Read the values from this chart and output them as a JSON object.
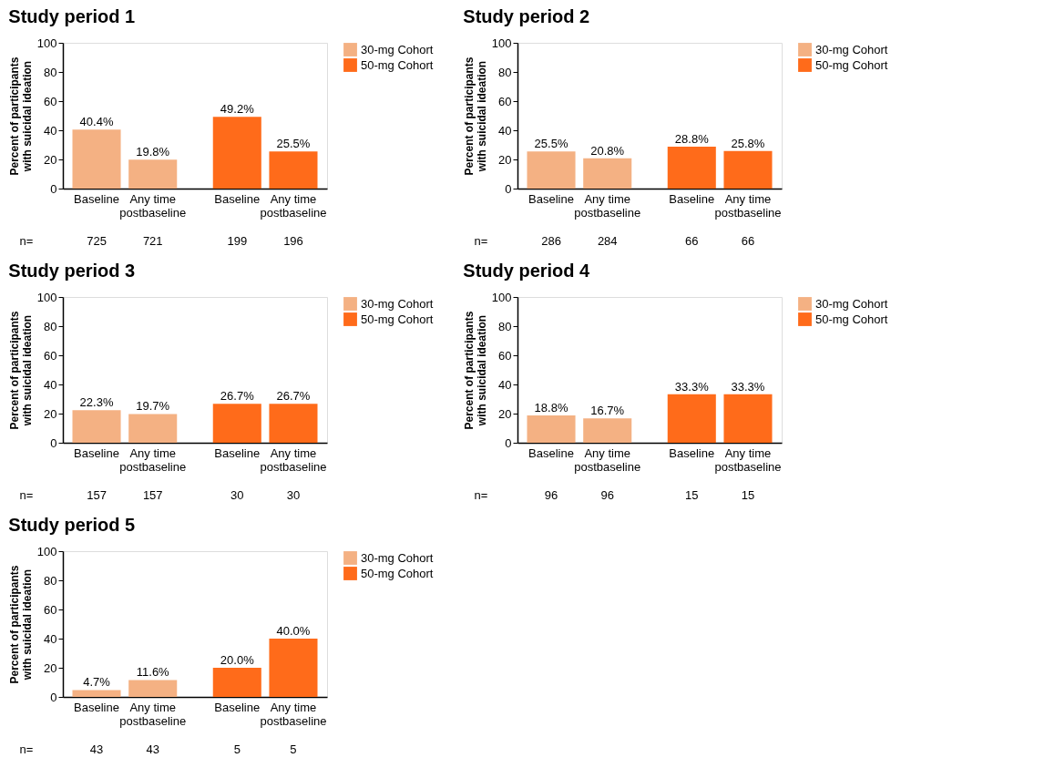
{
  "chart_data": [
    {
      "type": "bar",
      "title": "Study period 1",
      "ylabel": "Percent of participants with suicidal ideation",
      "categories": [
        "Baseline",
        "Any time postbaseline",
        "Baseline",
        "Any time postbaseline"
      ],
      "series": [
        {
          "name": "30-mg Cohort",
          "color": "#f4b183",
          "values": [
            40.4,
            19.8,
            null,
            null
          ],
          "value_labels": [
            "40.4%",
            "19.8%",
            null,
            null
          ]
        },
        {
          "name": "50-mg Cohort",
          "color": "#ff6b1a",
          "values": [
            null,
            null,
            49.2,
            25.5
          ],
          "value_labels": [
            null,
            null,
            "49.2%",
            "25.5%"
          ]
        }
      ],
      "ylim": [
        0,
        100
      ],
      "yticks": [
        0,
        20,
        40,
        60,
        80,
        100
      ],
      "grid": false,
      "legend": "right",
      "annotations": [
        "n=",
        "725",
        "721",
        "199",
        "196"
      ]
    },
    {
      "type": "bar",
      "title": "Study period 2",
      "ylabel": "Percent of participants with suicidal ideation",
      "categories": [
        "Baseline",
        "Any time postbaseline",
        "Baseline",
        "Any time postbaseline"
      ],
      "series": [
        {
          "name": "30-mg Cohort",
          "color": "#f4b183",
          "values": [
            25.5,
            20.8,
            null,
            null
          ],
          "value_labels": [
            "25.5%",
            "20.8%",
            null,
            null
          ]
        },
        {
          "name": "50-mg Cohort",
          "color": "#ff6b1a",
          "values": [
            null,
            null,
            28.8,
            25.8
          ],
          "value_labels": [
            null,
            null,
            "28.8%",
            "25.8%"
          ]
        }
      ],
      "ylim": [
        0,
        100
      ],
      "yticks": [
        0,
        20,
        40,
        60,
        80,
        100
      ],
      "grid": false,
      "legend": "right",
      "annotations": [
        "n=",
        "286",
        "284",
        "66",
        "66"
      ]
    },
    {
      "type": "bar",
      "title": "Study period 3",
      "ylabel": "Percent of participants with suicidal ideation",
      "categories": [
        "Baseline",
        "Any time postbaseline",
        "Baseline",
        "Any time postbaseline"
      ],
      "series": [
        {
          "name": "30-mg Cohort",
          "color": "#f4b183",
          "values": [
            22.3,
            19.7,
            null,
            null
          ],
          "value_labels": [
            "22.3%",
            "19.7%",
            null,
            null
          ]
        },
        {
          "name": "50-mg Cohort",
          "color": "#ff6b1a",
          "values": [
            null,
            null,
            26.7,
            26.7
          ],
          "value_labels": [
            null,
            null,
            "26.7%",
            "26.7%"
          ]
        }
      ],
      "ylim": [
        0,
        100
      ],
      "yticks": [
        0,
        20,
        40,
        60,
        80,
        100
      ],
      "grid": false,
      "legend": "right",
      "annotations": [
        "n=",
        "157",
        "157",
        "30",
        "30"
      ]
    },
    {
      "type": "bar",
      "title": "Study period 4",
      "ylabel": "Percent of participants with suicidal ideation",
      "categories": [
        "Baseline",
        "Any time postbaseline",
        "Baseline",
        "Any time postbaseline"
      ],
      "series": [
        {
          "name": "30-mg Cohort",
          "color": "#f4b183",
          "values": [
            18.8,
            16.7,
            null,
            null
          ],
          "value_labels": [
            "18.8%",
            "16.7%",
            null,
            null
          ]
        },
        {
          "name": "50-mg Cohort",
          "color": "#ff6b1a",
          "values": [
            null,
            null,
            33.3,
            33.3
          ],
          "value_labels": [
            null,
            null,
            "33.3%",
            "33.3%"
          ]
        }
      ],
      "ylim": [
        0,
        100
      ],
      "yticks": [
        0,
        20,
        40,
        60,
        80,
        100
      ],
      "grid": false,
      "legend": "right",
      "annotations": [
        "n=",
        "96",
        "96",
        "15",
        "15"
      ]
    },
    {
      "type": "bar",
      "title": "Study period 5",
      "ylabel": "Percent of participants with suicidal ideation",
      "categories": [
        "Baseline",
        "Any time postbaseline",
        "Baseline",
        "Any time postbaseline"
      ],
      "series": [
        {
          "name": "30-mg Cohort",
          "color": "#f4b183",
          "values": [
            4.7,
            11.6,
            null,
            null
          ],
          "value_labels": [
            "4.7%",
            "11.6%",
            null,
            null
          ]
        },
        {
          "name": "50-mg Cohort",
          "color": "#ff6b1a",
          "values": [
            null,
            null,
            20.0,
            40.0
          ],
          "value_labels": [
            null,
            null,
            "20.0%",
            "40.0%"
          ]
        }
      ],
      "ylim": [
        0,
        100
      ],
      "yticks": [
        0,
        20,
        40,
        60,
        80,
        100
      ],
      "grid": false,
      "legend": "right",
      "annotations": [
        "n=",
        "43",
        "43",
        "5",
        "5"
      ]
    }
  ]
}
